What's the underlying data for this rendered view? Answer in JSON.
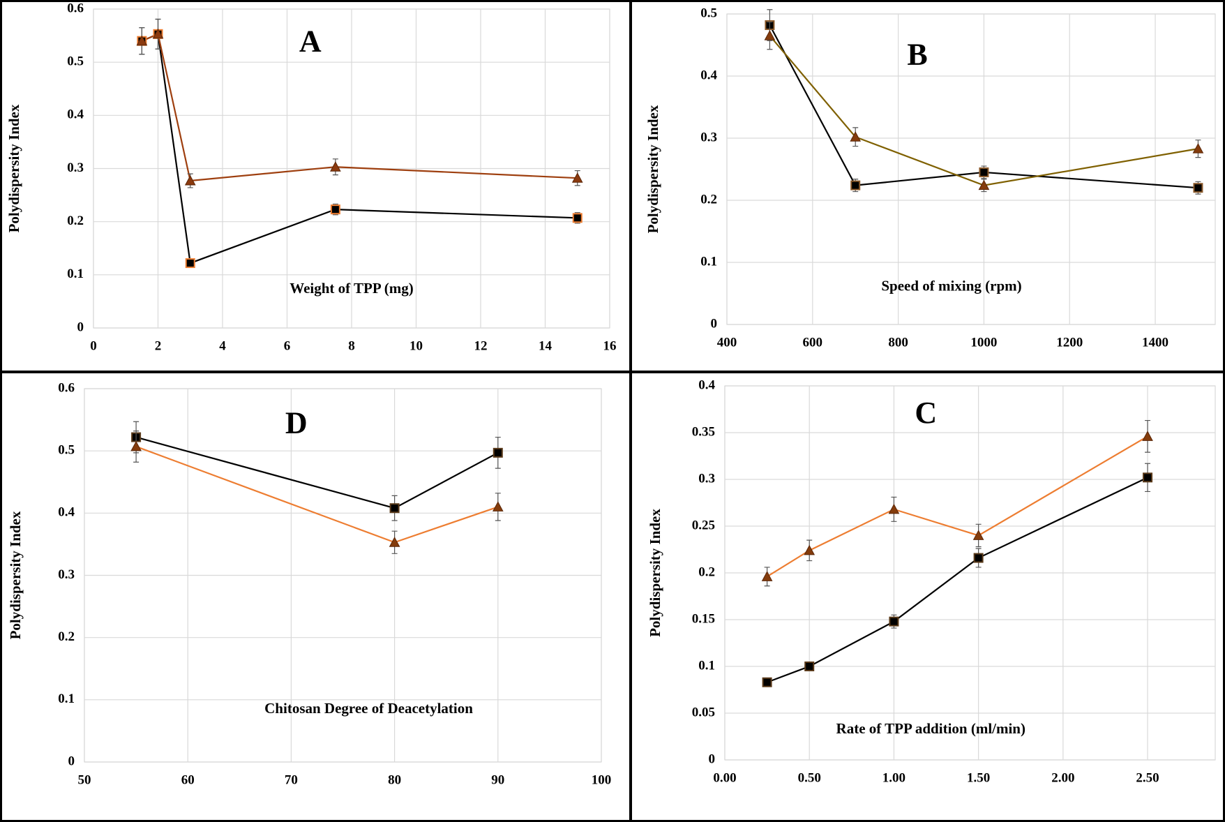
{
  "chart_data": [
    {
      "type": "line",
      "title": "A",
      "x_label": "Weight of TPP (mg)",
      "y_label": "Polydispersity Index",
      "x": [
        1.5,
        2,
        3,
        7.5,
        15
      ],
      "series": [
        {
          "color": "#000000",
          "marker": "square",
          "marker_color": "#000000",
          "marker_edge": "#ed7d31",
          "values": [
            0.54,
            0.553,
            0.122,
            0.223,
            0.207
          ],
          "errors": [
            0.025,
            0.028,
            0.005,
            0.01,
            0.01
          ]
        },
        {
          "color": "#9e3f0f",
          "marker": "triangle",
          "marker_color": "#8b3a0f",
          "marker_edge": "#5a2608",
          "values": [
            0.54,
            0.553,
            0.277,
            0.303,
            0.282
          ],
          "errors": [
            0.025,
            0.028,
            0.013,
            0.015,
            0.014
          ]
        }
      ],
      "xlim": [
        0,
        16
      ],
      "xticks": [
        0,
        2,
        4,
        6,
        8,
        10,
        12,
        14,
        16
      ],
      "ylim": [
        0,
        0.6
      ],
      "yticks": [
        0,
        0.1,
        0.2,
        0.3,
        0.4,
        0.5,
        0.6
      ],
      "grid": true
    },
    {
      "type": "line",
      "title": "B",
      "x_label": "Speed of mixing (rpm)",
      "y_label": "Polydispersity Index",
      "x": [
        500,
        700,
        1000,
        1500
      ],
      "series": [
        {
          "color": "#000000",
          "marker": "square",
          "marker_color": "#000000",
          "marker_edge": "#8b5a2b",
          "values": [
            0.482,
            0.224,
            0.245,
            0.22
          ],
          "errors": [
            0.025,
            0.01,
            0.01,
            0.01
          ]
        },
        {
          "color": "#7f6000",
          "marker": "triangle",
          "marker_color": "#843c0c",
          "marker_edge": "#5a2608",
          "values": [
            0.465,
            0.302,
            0.224,
            0.283
          ],
          "errors": [
            0.022,
            0.015,
            0.01,
            0.014
          ]
        }
      ],
      "xlim": [
        400,
        1540
      ],
      "xticks": [
        400,
        600,
        800,
        1000,
        1200,
        1400
      ],
      "ylim": [
        0,
        0.5
      ],
      "yticks": [
        0,
        0.1,
        0.2,
        0.3,
        0.4,
        0.5
      ],
      "grid": true
    },
    {
      "type": "line",
      "title": "D",
      "x_label": "Chitosan Degree of Deacetylation",
      "y_label": "Polydispersity Index",
      "x": [
        55,
        80,
        90
      ],
      "series": [
        {
          "color": "#000000",
          "marker": "square",
          "marker_color": "#000000",
          "marker_edge": "#5a3a1a",
          "values": [
            0.522,
            0.408,
            0.497
          ],
          "errors": [
            0.025,
            0.02,
            0.025
          ]
        },
        {
          "color": "#ed7d31",
          "marker": "triangle",
          "marker_color": "#843c0c",
          "marker_edge": "#5a2608",
          "values": [
            0.507,
            0.353,
            0.41
          ],
          "errors": [
            0.025,
            0.018,
            0.022
          ]
        }
      ],
      "xlim": [
        50,
        100
      ],
      "xticks": [
        50,
        60,
        70,
        80,
        90,
        100
      ],
      "ylim": [
        0,
        0.6
      ],
      "yticks": [
        0,
        0.1,
        0.2,
        0.3,
        0.4,
        0.5,
        0.6
      ],
      "grid": true
    },
    {
      "type": "line",
      "title": "C",
      "x_label": "Rate of TPP addition (ml/min)",
      "y_label": "Polydispersity Index",
      "x": [
        0.25,
        0.5,
        1,
        1.5,
        2.5
      ],
      "series": [
        {
          "color": "#000000",
          "marker": "square",
          "marker_color": "#000000",
          "marker_edge": "#5a3a1a",
          "values": [
            0.083,
            0.1,
            0.148,
            0.216,
            0.302
          ],
          "errors": [
            0.003,
            0.004,
            0.007,
            0.01,
            0.015
          ]
        },
        {
          "color": "#ed7d31",
          "marker": "triangle",
          "marker_color": "#843c0c",
          "marker_edge": "#5a2608",
          "values": [
            0.196,
            0.224,
            0.268,
            0.24,
            0.346
          ],
          "errors": [
            0.01,
            0.011,
            0.013,
            0.012,
            0.017
          ]
        }
      ],
      "xlim": [
        0,
        2.9
      ],
      "xticks": [
        {
          "value": 0,
          "label": "0.00"
        },
        {
          "value": 0.5,
          "label": "0.50"
        },
        {
          "value": 1,
          "label": "1.00"
        },
        {
          "value": 1.5,
          "label": "1.50"
        },
        {
          "value": 2,
          "label": "2.00"
        },
        {
          "value": 2.5,
          "label": "2.50"
        }
      ],
      "ylim": [
        0,
        0.4
      ],
      "yticks": [
        0,
        0.05,
        0.1,
        0.15,
        0.2,
        0.25,
        0.3,
        0.35,
        0.4
      ],
      "grid": true
    }
  ]
}
